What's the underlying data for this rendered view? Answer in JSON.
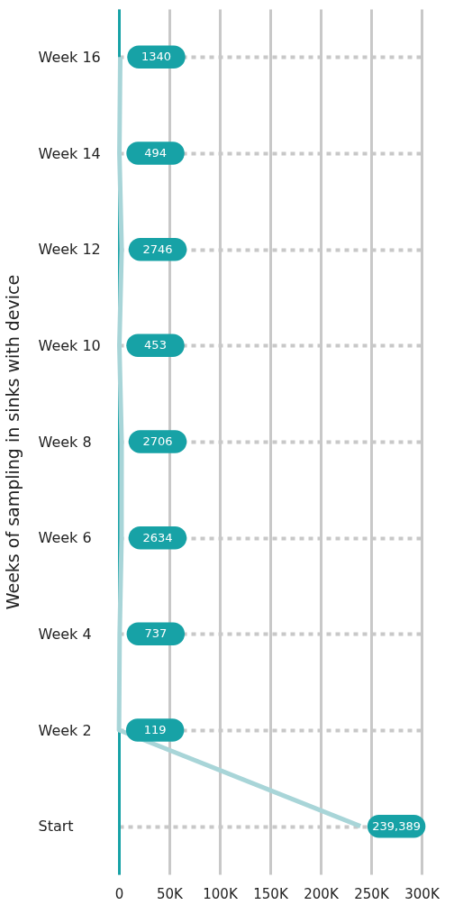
{
  "chart_data": {
    "type": "line",
    "orientation": "horizontal",
    "ylabel": "Weeks of sampling in sinks with device",
    "categories": [
      "Week 16",
      "Week 14",
      "Week 12",
      "Week 10",
      "Week 8",
      "Week 6",
      "Week 4",
      "Week 2",
      "Start"
    ],
    "series": [
      {
        "color": "#a8d5d8",
        "values": [
          1340,
          494,
          2746,
          453,
          2706,
          2634,
          737,
          119,
          239389
        ],
        "value_labels": [
          "1340",
          "494",
          "2746",
          "453",
          "2706",
          "2634",
          "737",
          "119",
          "239,389"
        ]
      }
    ],
    "xlim": [
      0,
      300000
    ],
    "xticks": [
      0,
      {
        "value": 50000,
        "label": "50K"
      },
      {
        "value": 100000,
        "label": "100K"
      },
      {
        "value": 150000,
        "label": "150K"
      },
      {
        "value": 200000,
        "label": "200K"
      },
      {
        "value": 250000,
        "label": "250K"
      },
      {
        "value": 300000,
        "label": "300K"
      }
    ],
    "grid": true,
    "line_style": "solid"
  }
}
